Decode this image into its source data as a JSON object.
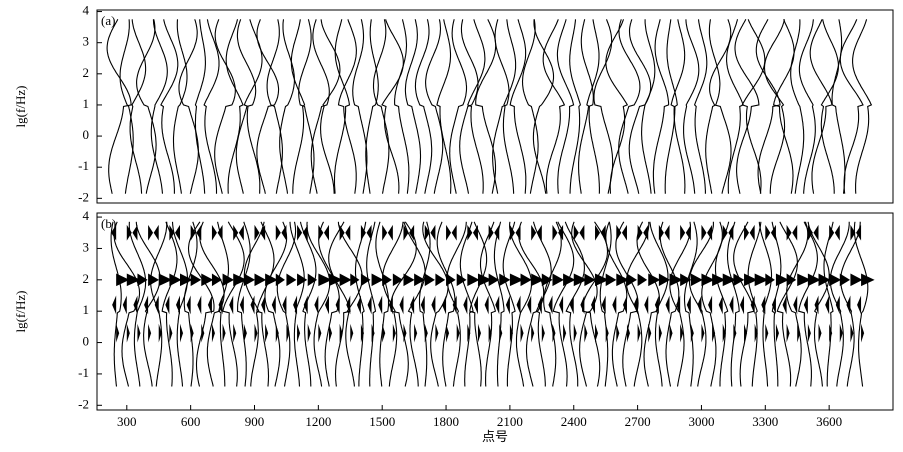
{
  "chart_data": [
    {
      "type": "wiggle",
      "panel_label": "(a)",
      "ylabel": "lg(f/Hz)",
      "x": [
        250,
        300,
        350,
        400,
        450,
        500,
        550,
        600,
        650,
        700,
        750,
        800,
        850,
        900,
        950,
        1000,
        1050,
        1100,
        1150,
        1200,
        1250,
        1300,
        1350,
        1400,
        1450,
        1500,
        1550,
        1600,
        1650,
        1700,
        1750,
        1800,
        1850,
        1900,
        1950,
        2000,
        2050,
        2100,
        2150,
        2200,
        2250,
        2300,
        2350,
        2400,
        2450,
        2500,
        2550,
        2600,
        2650,
        2700,
        2750,
        2800,
        2850,
        2900,
        2950,
        3000,
        3050,
        3100,
        3150,
        3200,
        3250,
        3300,
        3350,
        3400,
        3450,
        3500,
        3550,
        3600,
        3650,
        3700,
        3750
      ],
      "xlim": [
        160,
        3900
      ],
      "ylim": [
        -2.15,
        4.05
      ],
      "yticks": [
        -2,
        -1,
        0,
        1,
        2,
        3,
        4
      ]
    },
    {
      "type": "wiggle-filled",
      "panel_label": "(b)",
      "ylabel": "lg(f/Hz)",
      "xlabel": "点号",
      "x": [
        250,
        300,
        350,
        400,
        450,
        500,
        550,
        600,
        650,
        700,
        750,
        800,
        850,
        900,
        950,
        1000,
        1050,
        1100,
        1150,
        1200,
        1250,
        1300,
        1350,
        1400,
        1450,
        1500,
        1550,
        1600,
        1650,
        1700,
        1750,
        1800,
        1850,
        1900,
        1950,
        2000,
        2050,
        2100,
        2150,
        2200,
        2250,
        2300,
        2350,
        2400,
        2450,
        2500,
        2550,
        2600,
        2650,
        2700,
        2750,
        2800,
        2850,
        2900,
        2950,
        3000,
        3050,
        3100,
        3150,
        3200,
        3250,
        3300,
        3350,
        3400,
        3450,
        3500,
        3550,
        3600,
        3650,
        3700,
        3750
      ],
      "xlim": [
        160,
        3900
      ],
      "ylim": [
        -2.15,
        4.13
      ],
      "yticks": [
        -2,
        -1,
        0,
        1,
        2,
        3,
        4
      ],
      "xticks": [
        300,
        600,
        900,
        1200,
        1500,
        1800,
        2100,
        2400,
        2700,
        3000,
        3300,
        3600
      ]
    }
  ]
}
